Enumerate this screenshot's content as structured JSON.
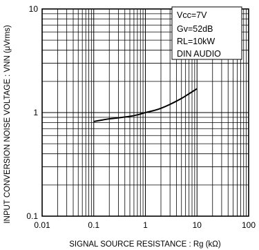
{
  "chart_data": {
    "type": "line",
    "title": "",
    "xlabel": "SIGNAL  SOURCE  RESISTANCE : Rg (kΩ)",
    "ylabel": "INPUT CONVERSION NOISE VOLTAGE : VNN (μVrms)",
    "x_scale": "log",
    "y_scale": "log",
    "xlim": [
      0.01,
      100
    ],
    "ylim": [
      0.1,
      10
    ],
    "x_ticks": [
      "0.01",
      "0.1",
      "1",
      "10",
      "100"
    ],
    "y_ticks": [
      "0.1",
      "1",
      "10"
    ],
    "grid": true,
    "legend_position": "top-right",
    "conditions": [
      "Vcc=7V",
      "Gv=52dB",
      "RL=10kW",
      "DIN AUDIO"
    ],
    "series": [
      {
        "x": [
          0.1,
          0.15,
          0.2,
          0.3,
          0.5,
          0.7,
          1,
          1.5,
          2,
          3,
          5,
          7,
          10
        ],
        "y": [
          0.82,
          0.85,
          0.87,
          0.89,
          0.92,
          0.95,
          1.0,
          1.05,
          1.1,
          1.2,
          1.37,
          1.52,
          1.7
        ]
      }
    ]
  }
}
